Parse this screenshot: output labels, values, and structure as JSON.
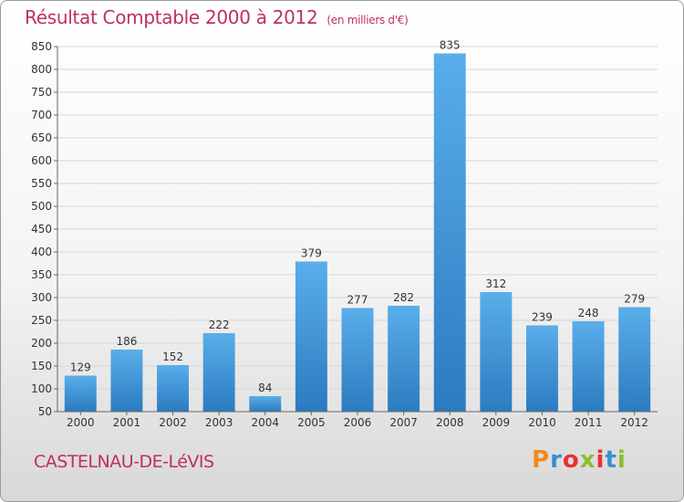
{
  "chart_data": {
    "type": "bar",
    "title": "Résultat Comptable 2000 à 2012",
    "subtitle": "(en milliers d'€)",
    "categories": [
      "2000",
      "2001",
      "2002",
      "2003",
      "2004",
      "2005",
      "2006",
      "2007",
      "2008",
      "2009",
      "2010",
      "2011",
      "2012"
    ],
    "values": [
      129,
      186,
      152,
      222,
      84,
      379,
      277,
      282,
      835,
      312,
      239,
      248,
      279
    ],
    "ylim": [
      50,
      850
    ],
    "yticks": [
      50,
      100,
      150,
      200,
      250,
      300,
      350,
      400,
      450,
      500,
      550,
      600,
      650,
      700,
      750,
      800,
      850
    ],
    "grid": true,
    "bar_color": "#3d8fd4"
  },
  "footer": {
    "city": "CASTELNAU-DE-LéVIS",
    "logo": "Proxiti",
    "logo_colors": [
      "#f08a1c",
      "#3a8fd0",
      "#e8322e",
      "#8bbf2e",
      "#e8322e",
      "#3a8fd0",
      "#8bbf2e"
    ]
  }
}
